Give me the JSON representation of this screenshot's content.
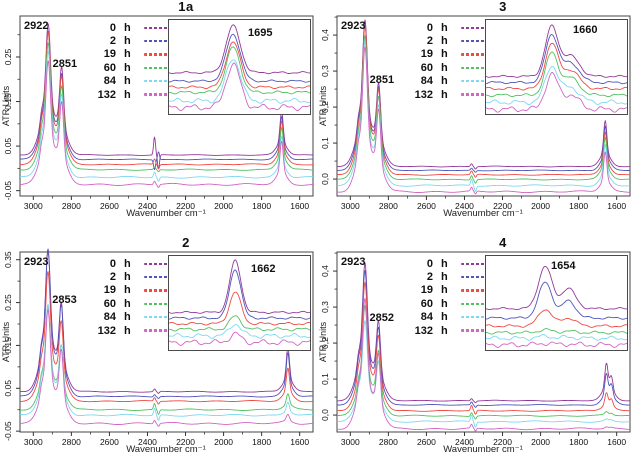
{
  "figure": {
    "description": "ATR-FTIR spectra time series, four panels"
  },
  "legend": {
    "times": [
      "0",
      "2",
      "19",
      "60",
      "84",
      "132"
    ],
    "unit": "h",
    "colors": [
      "#94399b",
      "#4f55bb",
      "#ef4b45",
      "#53c161",
      "#7fd8f0",
      "#d266c4"
    ]
  },
  "chart_data": [
    {
      "type": "line",
      "title": "1a",
      "xlabel": "Wavenumber cm⁻¹",
      "ylabel": "ATR Units",
      "x_ticks": [
        3000,
        2800,
        2600,
        2400,
        2200,
        2000,
        1800,
        1600
      ],
      "x_range": [
        3070,
        1530
      ],
      "y_range": [
        -0.062,
        0.342
      ],
      "y_ticks": [
        {
          "v": -0.05,
          "t": "-0.05"
        },
        {
          "v": 0.05,
          "t": "0.05"
        },
        {
          "v": 0.15,
          "t": "0.15"
        },
        {
          "v": 0.25,
          "t": "0.25"
        }
      ],
      "peak_labels": {
        "ch1": "2922",
        "ch2": "2851"
      },
      "peaks": {
        "ch1_pos": 2922,
        "ch2_pos": 2851,
        "co_pos": 1695,
        "co_shoulder": 0
      },
      "inset": {
        "label": "1695",
        "label_x": 0.56,
        "label_y": 0.08,
        "peaks": [
          {
            "c": 0.455,
            "w": 0.05,
            "h": 1
          }
        ]
      },
      "series": [
        {
          "time": "0",
          "offset": 0.03,
          "ch1": 0.277,
          "ch2": 0.178,
          "co": 0.096,
          "co2": 0.04,
          "noise": 0.0006,
          "inset_h": 0.5,
          "inset_base": 0.56,
          "inoise": 0.7
        },
        {
          "time": "2",
          "offset": 0.02,
          "ch1": 0.272,
          "ch2": 0.173,
          "co": 0.094,
          "co2": -0.022,
          "noise": 0.0006,
          "inset_h": 0.5,
          "inset_base": 0.65,
          "inoise": 0.7
        },
        {
          "time": "19",
          "offset": 0.009,
          "ch1": 0.28,
          "ch2": 0.179,
          "co": 0.095,
          "co2": 0.012,
          "noise": 0.0008,
          "inset_h": 0.485,
          "inset_base": 0.715,
          "inoise": 0.9
        },
        {
          "time": "60",
          "offset": -0.003,
          "ch1": 0.268,
          "ch2": 0.17,
          "co": 0.093,
          "co2": 0.006,
          "noise": 0.0009,
          "inset_h": 0.48,
          "inset_base": 0.77,
          "inoise": 1.0
        },
        {
          "time": "84",
          "offset": -0.02,
          "ch1": 0.266,
          "ch2": 0.168,
          "co": 0.091,
          "co2": 0.012,
          "noise": 0.0013,
          "inset_h": 0.455,
          "inset_base": 0.86,
          "inoise": 1.7
        },
        {
          "time": "132",
          "offset": -0.036,
          "ch1": 0.262,
          "ch2": 0.165,
          "co": 0.093,
          "co2": 0.008,
          "noise": 0.0015,
          "inset_h": 0.46,
          "inset_base": 0.93,
          "inoise": 2.1
        }
      ]
    },
    {
      "type": "line",
      "title": "3",
      "xlabel": "Wavenumber cm⁻¹",
      "ylabel": "ATR Units",
      "x_ticks": [
        3000,
        2800,
        2600,
        2400,
        2200,
        2000,
        1800,
        1600
      ],
      "x_range": [
        3070,
        1530
      ],
      "y_range": [
        -0.047,
        0.453
      ],
      "y_ticks": [
        {
          "v": 0.0,
          "t": "0,0"
        },
        {
          "v": 0.1,
          "t": "0,1"
        },
        {
          "v": 0.2,
          "t": "0,2"
        },
        {
          "v": 0.3,
          "t": "0,3"
        },
        {
          "v": 0.4,
          "t": "0,4"
        }
      ],
      "peak_labels": {
        "ch1": "2923",
        "ch2": "2851"
      },
      "peaks": {
        "ch1_pos": 2923,
        "ch2_pos": 2851,
        "co_pos": 1660,
        "co_shoulder": 0
      },
      "inset": {
        "label": "1660",
        "label_x": 0.62,
        "label_y": 0.05,
        "peaks": [
          {
            "c": 0.465,
            "w": 0.045,
            "h": 1
          },
          {
            "c": 0.6,
            "w": 0.06,
            "h": 0.42
          }
        ]
      },
      "series": [
        {
          "time": "0",
          "offset": 0.035,
          "ch1": 0.385,
          "ch2": 0.206,
          "co": 0.124,
          "co2": 0.008,
          "noise": 0.0007,
          "inset_h": 0.52,
          "inset_base": 0.6,
          "inoise": 0.7
        },
        {
          "time": "2",
          "offset": 0.024,
          "ch1": 0.388,
          "ch2": 0.208,
          "co": 0.121,
          "co2": 0.006,
          "noise": 0.0007,
          "inset_h": 0.5,
          "inset_base": 0.665,
          "inoise": 0.8
        },
        {
          "time": "19",
          "offset": 0.012,
          "ch1": 0.392,
          "ch2": 0.211,
          "co": 0.118,
          "co2": 0.01,
          "noise": 0.0009,
          "inset_h": 0.47,
          "inset_base": 0.73,
          "inoise": 0.9
        },
        {
          "time": "60",
          "offset": -0.001,
          "ch1": 0.378,
          "ch2": 0.204,
          "co": 0.114,
          "co2": 0.012,
          "noise": 0.001,
          "inset_h": 0.44,
          "inset_base": 0.8,
          "inoise": 1.0
        },
        {
          "time": "84",
          "offset": -0.018,
          "ch1": 0.376,
          "ch2": 0.2,
          "co": 0.111,
          "co2": 0.018,
          "noise": 0.0014,
          "inset_h": 0.38,
          "inset_base": 0.875,
          "inoise": 1.6
        },
        {
          "time": "132",
          "offset": -0.035,
          "ch1": 0.378,
          "ch2": 0.204,
          "co": 0.109,
          "co2": 0.01,
          "noise": 0.0016,
          "inset_h": 0.36,
          "inset_base": 0.95,
          "inoise": 1.9
        }
      ]
    },
    {
      "type": "line",
      "title": "2",
      "xlabel": "Wavenumber cm⁻¹",
      "ylabel": "ATR Units",
      "x_ticks": [
        3000,
        2800,
        2600,
        2400,
        2200,
        2000,
        1800,
        1600
      ],
      "x_range": [
        3070,
        1530
      ],
      "y_range": [
        -0.052,
        0.368
      ],
      "y_ticks": [
        {
          "v": -0.05,
          "t": "-0.05"
        },
        {
          "v": 0.05,
          "t": "0.05"
        },
        {
          "v": 0.15,
          "t": "0.15"
        },
        {
          "v": 0.25,
          "t": "0.25"
        },
        {
          "v": 0.35,
          "t": "0.35"
        }
      ],
      "peak_labels": {
        "ch1": "2923",
        "ch2": "2853"
      },
      "peaks": {
        "ch1_pos": 2923,
        "ch2_pos": 2853,
        "co_pos": 1662,
        "co_shoulder": 0
      },
      "inset": {
        "label": "1662",
        "label_x": 0.58,
        "label_y": 0.08,
        "peaks": [
          {
            "c": 0.47,
            "w": 0.04,
            "h": 1
          }
        ]
      },
      "series": [
        {
          "time": "0",
          "offset": 0.042,
          "ch1": 0.313,
          "ch2": 0.186,
          "co": 0.102,
          "co2": 0.006,
          "noise": 0.0008,
          "inset_h": 0.55,
          "inset_base": 0.6,
          "inoise": 0.7
        },
        {
          "time": "2",
          "offset": 0.031,
          "ch1": 0.322,
          "ch2": 0.19,
          "co": 0.1,
          "co2": 0.005,
          "noise": 0.0008,
          "inset_h": 0.52,
          "inset_base": 0.66,
          "inoise": 0.8
        },
        {
          "time": "19",
          "offset": 0.02,
          "ch1": 0.285,
          "ch2": 0.166,
          "co": 0.075,
          "co2": 0.008,
          "noise": 0.0009,
          "inset_h": 0.34,
          "inset_base": 0.72,
          "inoise": 0.9
        },
        {
          "time": "60",
          "offset": 0.0,
          "ch1": 0.228,
          "ch2": 0.136,
          "co": 0.036,
          "co2": 0.014,
          "noise": 0.0011,
          "inset_h": 0.14,
          "inset_base": 0.78,
          "inoise": 1.1
        },
        {
          "time": "84",
          "offset": -0.013,
          "ch1": 0.243,
          "ch2": 0.146,
          "co": 0.032,
          "co2": 0.016,
          "noise": 0.0014,
          "inset_h": 0.13,
          "inset_base": 0.85,
          "inoise": 1.6
        },
        {
          "time": "132",
          "offset": -0.032,
          "ch1": 0.251,
          "ch2": 0.152,
          "co": 0.02,
          "co2": 0.008,
          "noise": 0.0016,
          "inset_h": 0.09,
          "inset_base": 0.92,
          "inoise": 1.9
        }
      ]
    },
    {
      "type": "line",
      "title": "4",
      "xlabel": "Wavenumber cm⁻¹",
      "ylabel": "ATR Units",
      "x_ticks": [
        3000,
        2800,
        2600,
        2400,
        2200,
        2000,
        1800,
        1600
      ],
      "x_range": [
        3070,
        1530
      ],
      "y_range": [
        -0.047,
        0.453
      ],
      "y_ticks": [
        {
          "v": 0.0,
          "t": "0,0"
        },
        {
          "v": 0.1,
          "t": "0,1"
        },
        {
          "v": 0.2,
          "t": "0,2"
        },
        {
          "v": 0.3,
          "t": "0,3"
        },
        {
          "v": 0.4,
          "t": "0,4"
        }
      ],
      "peak_labels": {
        "ch1": "2923",
        "ch2": "2852"
      },
      "peaks": {
        "ch1_pos": 2923,
        "ch2_pos": 2852,
        "co_pos": 1654,
        "co_shoulder": 0.55
      },
      "inset": {
        "label": "1654",
        "label_x": 0.46,
        "label_y": 0.05,
        "peaks": [
          {
            "c": 0.42,
            "w": 0.048,
            "h": 1
          },
          {
            "c": 0.585,
            "w": 0.05,
            "h": 0.48
          }
        ]
      },
      "series": [
        {
          "time": "0",
          "offset": 0.04,
          "ch1": 0.362,
          "ch2": 0.196,
          "co": 0.092,
          "co2": 0.006,
          "noise": 0.0008,
          "inset_h": 0.45,
          "inset_base": 0.56,
          "inoise": 0.7
        },
        {
          "time": "2",
          "offset": 0.028,
          "ch1": 0.352,
          "ch2": 0.192,
          "co": 0.078,
          "co2": 0.008,
          "noise": 0.0008,
          "inset_h": 0.38,
          "inset_base": 0.66,
          "inoise": 0.8
        },
        {
          "time": "19",
          "offset": 0.012,
          "ch1": 0.335,
          "ch2": 0.185,
          "co": 0.046,
          "co2": 0.014,
          "noise": 0.001,
          "inset_h": 0.18,
          "inset_base": 0.745,
          "inoise": 0.9
        },
        {
          "time": "60",
          "offset": -0.002,
          "ch1": 0.29,
          "ch2": 0.16,
          "co": 0.01,
          "co2": 0.01,
          "noise": 0.0011,
          "inset_h": 0.03,
          "inset_base": 0.815,
          "inoise": 1.0
        },
        {
          "time": "84",
          "offset": -0.018,
          "ch1": 0.265,
          "ch2": 0.15,
          "co": 0.006,
          "co2": 0.018,
          "noise": 0.0014,
          "inset_h": 0.022,
          "inset_base": 0.875,
          "inoise": 1.4
        },
        {
          "time": "132",
          "offset": -0.038,
          "ch1": 0.34,
          "ch2": 0.186,
          "co": 0.005,
          "co2": 0.01,
          "noise": 0.0016,
          "inset_h": 0.018,
          "inset_base": 0.945,
          "inoise": 1.7
        }
      ]
    }
  ]
}
